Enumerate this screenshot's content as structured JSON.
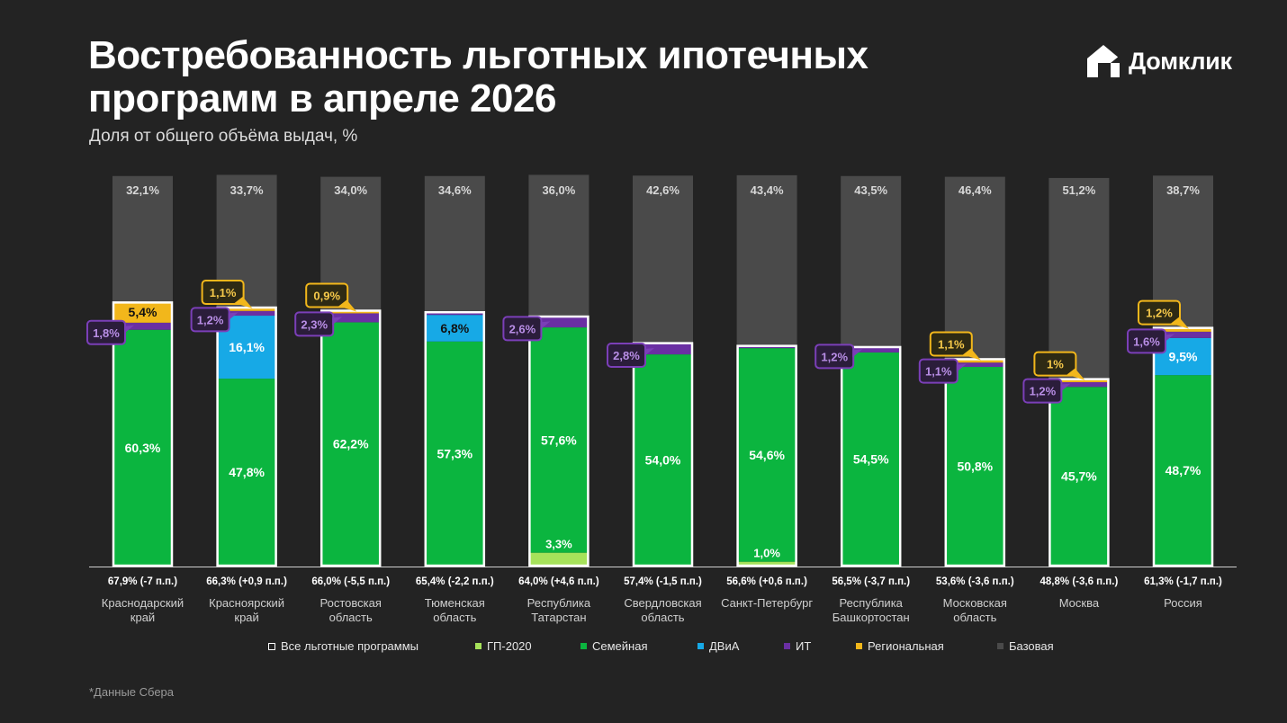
{
  "header": {
    "title": "Востребованность льготных ипотечных программ в апреле 2026",
    "subtitle": "Доля от общего объёма выдач, %",
    "logo_text": "Домклик"
  },
  "footnote": "*Данные Сбера",
  "colors": {
    "background": "#232323",
    "base": "#4a4a4a",
    "gp2020": "#a6e25a",
    "family": "#0bb53f",
    "dvia": "#17a9e6",
    "it": "#6a2fa3",
    "regional": "#f2b71b",
    "outline": "#ffffff",
    "it_callout_bg": "#2b1d3b",
    "it_callout_border": "#7b3fb8",
    "reg_callout_bg": "#2e2a14",
    "reg_callout_border": "#f2b71b"
  },
  "legend": [
    {
      "key": "all",
      "label": "Все льготные программы",
      "icon": "outline-square"
    },
    {
      "key": "gp2020",
      "label": "ГП-2020",
      "icon": "square"
    },
    {
      "key": "family",
      "label": "Семейная",
      "icon": "square"
    },
    {
      "key": "dvia",
      "label": "ДВиА",
      "icon": "square"
    },
    {
      "key": "it",
      "label": "ИТ",
      "icon": "square"
    },
    {
      "key": "regional",
      "label": "Региональная",
      "icon": "square"
    },
    {
      "key": "base",
      "label": "Базовая",
      "icon": "square"
    }
  ],
  "chart_data": {
    "type": "bar",
    "stacked": true,
    "ylim": [
      0,
      100
    ],
    "grid": false,
    "legend_position": "bottom",
    "categories": [
      {
        "name": "Краснодарский край",
        "lines": [
          "Краснодарский",
          "край"
        ],
        "total_label": "67,9% (-7 п.п.)"
      },
      {
        "name": "Красноярский край",
        "lines": [
          "Красноярский",
          "край"
        ],
        "total_label": "66,3% (+0,9 п.п.)"
      },
      {
        "name": "Ростовская область",
        "lines": [
          "Ростовская",
          "область"
        ],
        "total_label": "66,0% (-5,5 п.п.)"
      },
      {
        "name": "Тюменская область",
        "lines": [
          "Тюменская",
          "область"
        ],
        "total_label": "65,4% (-2,2 п.п.)"
      },
      {
        "name": "Республика Татарстан",
        "lines": [
          "Республика",
          "Татарстан"
        ],
        "total_label": "64,0% (+4,6 п.п.)"
      },
      {
        "name": "Свердловская область",
        "lines": [
          "Свердловская",
          "область"
        ],
        "total_label": "57,4% (-1,5 п.п.)"
      },
      {
        "name": "Санкт-Петербург",
        "lines": [
          "Санкт-Петербург"
        ],
        "total_label": "56,6% (+0,6 п.п.)"
      },
      {
        "name": "Республика Башкортостан",
        "lines": [
          "Республика",
          "Башкортостан"
        ],
        "total_label": "56,5% (-3,7 п.п.)"
      },
      {
        "name": "Московская область",
        "lines": [
          "Московская",
          "область"
        ],
        "total_label": "53,6% (-3,6 п.п.)"
      },
      {
        "name": "Москва",
        "lines": [
          "Москва"
        ],
        "total_label": "48,8% (-3,6 п.п.)"
      },
      {
        "name": "Россия",
        "lines": [
          "Россия"
        ],
        "total_label": "61,3% (-1,7 п.п.)"
      }
    ],
    "series": [
      {
        "key": "gp2020",
        "name": "ГП-2020",
        "values": [
          0,
          0,
          0,
          0,
          3.3,
          0,
          1.0,
          0,
          0,
          0,
          0
        ],
        "labels": [
          "",
          "",
          "",
          "",
          "3,3%",
          "",
          "1,0%",
          "",
          "",
          "",
          ""
        ]
      },
      {
        "key": "family",
        "name": "Семейная",
        "values": [
          60.3,
          47.8,
          62.2,
          57.3,
          57.6,
          54.0,
          54.6,
          54.5,
          50.8,
          45.7,
          48.7
        ],
        "labels": [
          "60,3%",
          "47,8%",
          "62,2%",
          "57,3%",
          "57,6%",
          "54,0%",
          "54,6%",
          "54,5%",
          "50,8%",
          "45,7%",
          "48,7%"
        ]
      },
      {
        "key": "dvia",
        "name": "ДВиА",
        "values": [
          0,
          16.1,
          0,
          6.8,
          0,
          0,
          0,
          0,
          0,
          0,
          9.5
        ],
        "labels": [
          "",
          "16,1%",
          "",
          "6,8%",
          "",
          "",
          "",
          "",
          "",
          "",
          "9,5%"
        ]
      },
      {
        "key": "it",
        "name": "ИТ",
        "values": [
          1.8,
          1.2,
          2.3,
          0.5,
          2.6,
          2.8,
          0.5,
          1.2,
          1.1,
          1.2,
          1.6
        ],
        "labels": [
          "1,8%",
          "1,2%",
          "2,3%",
          "",
          "2,6%",
          "2,8%",
          "",
          "1,2%",
          "1,1%",
          "1,2%",
          "1,6%"
        ]
      },
      {
        "key": "regional",
        "name": "Региональная",
        "values": [
          5.4,
          1.1,
          0.9,
          0.4,
          0.4,
          0.3,
          0.3,
          0.4,
          1.1,
          1.0,
          1.2
        ],
        "labels": [
          "5,4%",
          "1,1%",
          "0,9%",
          "",
          "",
          "",
          "",
          "",
          "1,1%",
          "1%",
          "1,2%"
        ]
      },
      {
        "key": "base",
        "name": "Базовая",
        "values": [
          32.1,
          33.7,
          34.0,
          34.6,
          36.0,
          42.6,
          43.4,
          43.5,
          46.4,
          51.2,
          38.7
        ],
        "labels": [
          "32,1%",
          "33,7%",
          "34,0%",
          "34,6%",
          "36,0%",
          "42,6%",
          "43,4%",
          "43,5%",
          "46,4%",
          "51,2%",
          "38,7%"
        ]
      }
    ]
  }
}
